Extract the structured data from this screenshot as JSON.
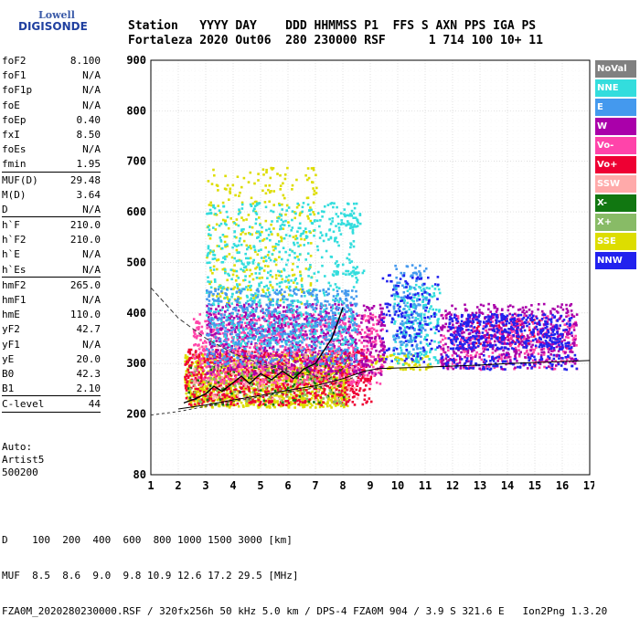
{
  "logo": {
    "line1": "Lowell",
    "line2": "DIGISONDE"
  },
  "header": {
    "labels": "Station   YYYY DAY    DDD HHMMSS P1  FFS S AXN PPS IGA PS",
    "values": "Fortaleza 2020 Out06  280 230000 RSF      1 714 100 10+ 11"
  },
  "params": [
    {
      "k": "foF2",
      "v": "8.100"
    },
    {
      "k": "foF1",
      "v": "N/A"
    },
    {
      "k": "foF1p",
      "v": "N/A"
    },
    {
      "k": "foE",
      "v": "N/A"
    },
    {
      "k": "foEp",
      "v": "0.40"
    },
    {
      "k": "fxI",
      "v": "8.50"
    },
    {
      "k": "foEs",
      "v": "N/A"
    },
    {
      "k": "fmin",
      "v": "1.95"
    },
    {
      "sep": true
    },
    {
      "k": "MUF(D)",
      "v": "29.48"
    },
    {
      "k": "M(D)",
      "v": "3.64"
    },
    {
      "k": "D",
      "v": "N/A"
    },
    {
      "sep": true
    },
    {
      "k": "h`F",
      "v": "210.0"
    },
    {
      "k": "h`F2",
      "v": "210.0"
    },
    {
      "k": "h`E",
      "v": "N/A"
    },
    {
      "k": "h`Es",
      "v": "N/A"
    },
    {
      "sep": true
    },
    {
      "k": "hmF2",
      "v": "265.0"
    },
    {
      "k": "hmF1",
      "v": "N/A"
    },
    {
      "k": "hmE",
      "v": "110.0"
    },
    {
      "k": "yF2",
      "v": "42.7"
    },
    {
      "k": "yF1",
      "v": "N/A"
    },
    {
      "k": "yE",
      "v": "20.0"
    },
    {
      "k": "B0",
      "v": "42.3"
    },
    {
      "k": "B1",
      "v": "2.10"
    },
    {
      "sep": true
    },
    {
      "k": "C-level",
      "v": "44"
    },
    {
      "sep": true
    }
  ],
  "autoscale": {
    "line1": "Auto:",
    "line2": "Artist5",
    "line3": "500200"
  },
  "legend": [
    {
      "label": "NoVal",
      "color": "#808080"
    },
    {
      "label": "NNE",
      "color": "#33dddd"
    },
    {
      "label": "E",
      "color": "#4499ee"
    },
    {
      "label": "W",
      "color": "#aa00aa"
    },
    {
      "label": "Vo-",
      "color": "#ff44aa"
    },
    {
      "label": "Vo+",
      "color": "#ee0033"
    },
    {
      "label": "SSW",
      "color": "#ffaaaa"
    },
    {
      "label": "X-",
      "color": "#117711"
    },
    {
      "label": "X+",
      "color": "#88bb66"
    },
    {
      "label": "SSE",
      "color": "#dddd00"
    },
    {
      "label": "NNW",
      "color": "#2222ee"
    }
  ],
  "footer": {
    "line1": "D    100  200  400  600  800 1000 1500 3000 [km]",
    "line2": "MUF  8.5  8.6  9.0  9.8 10.9 12.6 17.2 29.5 [MHz]",
    "line3": "FZA0M_2020280230000.RSF / 320fx256h 50 kHz 5.0 km / DPS-4 FZA0M 904 / 3.9 S 321.6 E   Ion2Png 1.3.20"
  },
  "chart_data": {
    "type": "scatter",
    "title": "",
    "xlabel": "",
    "ylabel": "",
    "xlim": [
      1,
      17
    ],
    "ylim": [
      80,
      900
    ],
    "x_ticks": [
      1,
      2,
      3,
      4,
      5,
      6,
      7,
      8,
      9,
      10,
      11,
      12,
      13,
      14,
      15,
      16,
      17
    ],
    "y_ticks": [
      80,
      200,
      300,
      400,
      500,
      600,
      700,
      800,
      900
    ],
    "grid": true,
    "legend_position": "right",
    "series": [
      {
        "name": "SSE",
        "color": "#dddd00",
        "clusters": [
          {
            "x": [
              2.2,
              8.2
            ],
            "y": [
              215,
              320
            ],
            "density": 0.85
          },
          {
            "x": [
              3.0,
              7.0
            ],
            "y": [
              420,
              690
            ],
            "density": 0.12
          },
          {
            "x": [
              9.0,
              11.2
            ],
            "y": [
              290,
              320
            ],
            "density": 0.5
          }
        ]
      },
      {
        "name": "Vo+",
        "color": "#ee0033",
        "clusters": [
          {
            "x": [
              2.2,
              9.0
            ],
            "y": [
              220,
              330
            ],
            "density": 0.45
          },
          {
            "x": [
              12.8,
              15.4
            ],
            "y": [
              340,
              390
            ],
            "density": 0.25
          }
        ]
      },
      {
        "name": "Vo-",
        "color": "#ff44aa",
        "clusters": [
          {
            "x": [
              2.5,
              9.5
            ],
            "y": [
              260,
              400
            ],
            "density": 0.35
          },
          {
            "x": [
              11.5,
              16.5
            ],
            "y": [
              290,
              400
            ],
            "density": 0.25
          }
        ]
      },
      {
        "name": "W",
        "color": "#aa00aa",
        "clusters": [
          {
            "x": [
              3.0,
              9.5
            ],
            "y": [
              280,
              420
            ],
            "density": 0.35
          },
          {
            "x": [
              11.5,
              16.5
            ],
            "y": [
              290,
              420
            ],
            "density": 0.3
          }
        ]
      },
      {
        "name": "NNE",
        "color": "#33dddd",
        "clusters": [
          {
            "x": [
              3.0,
              8.5
            ],
            "y": [
              330,
              620
            ],
            "density": 0.18
          },
          {
            "x": [
              7.8,
              8.6
            ],
            "y": [
              570,
              600
            ],
            "density": 0.6
          },
          {
            "x": [
              7.6,
              8.8
            ],
            "y": [
              478,
              486
            ],
            "density": 0.9
          },
          {
            "x": [
              9.8,
              11.5
            ],
            "y": [
              300,
              460
            ],
            "density": 0.3
          }
        ]
      },
      {
        "name": "E",
        "color": "#4499ee",
        "clusters": [
          {
            "x": [
              3.0,
              8.5
            ],
            "y": [
              300,
              450
            ],
            "density": 0.3
          },
          {
            "x": [
              9.8,
              11.0
            ],
            "y": [
              320,
              500
            ],
            "density": 0.3
          }
        ]
      },
      {
        "name": "NNW",
        "color": "#2222ee",
        "clusters": [
          {
            "x": [
              11.8,
              16.3
            ],
            "y": [
              330,
              400
            ],
            "density": 0.55
          },
          {
            "x": [
              9.3,
              11.5
            ],
            "y": [
              300,
              480
            ],
            "density": 0.15
          },
          {
            "x": [
              11.5,
              16.5
            ],
            "y": [
              290,
              320
            ],
            "density": 0.3
          }
        ]
      },
      {
        "name": "X-",
        "color": "#117711",
        "clusters": [
          {
            "x": [
              2.3,
              8.0
            ],
            "y": [
              220,
              300
            ],
            "density": 0.08
          }
        ]
      },
      {
        "name": "X+",
        "color": "#88bb66",
        "clusters": [
          {
            "x": [
              2.3,
              8.0
            ],
            "y": [
              220,
              300
            ],
            "density": 0.08
          }
        ]
      },
      {
        "name": "SSW",
        "color": "#ffaaaa",
        "clusters": [
          {
            "x": [
              2.5,
              8.5
            ],
            "y": [
              230,
              340
            ],
            "density": 0.08
          }
        ]
      }
    ],
    "profile_curve": {
      "x": [
        1,
        1.5,
        2,
        3,
        4,
        5,
        6,
        7,
        7.5,
        8,
        8.3
      ],
      "y": [
        450,
        420,
        390,
        350,
        320,
        300,
        285,
        275,
        270,
        290,
        320
      ]
    },
    "trace_solid": {
      "x": [
        2,
        3,
        4,
        5,
        6,
        7,
        8,
        8.8,
        9.3,
        10.5,
        12,
        13,
        14,
        15,
        16,
        17
      ],
      "y": [
        210,
        218,
        228,
        237,
        247,
        256,
        270,
        285,
        290,
        292,
        295,
        297,
        300,
        302,
        304,
        306
      ]
    },
    "trace_dashed": {
      "x": [
        1,
        2,
        3,
        4,
        5,
        6,
        7,
        8,
        8.8
      ],
      "y": [
        198,
        205,
        215,
        225,
        234,
        243,
        252,
        265,
        280
      ]
    },
    "trace_thick": {
      "x": [
        2.2,
        2.6,
        3.0,
        3.3,
        3.6,
        4.0,
        4.3,
        4.6,
        5.0,
        5.4,
        5.8,
        6.2,
        6.6,
        7.0,
        7.3,
        7.6,
        7.8,
        8.0
      ],
      "y": [
        222,
        230,
        240,
        255,
        245,
        262,
        275,
        260,
        280,
        268,
        285,
        270,
        290,
        300,
        325,
        350,
        380,
        410
      ]
    }
  }
}
